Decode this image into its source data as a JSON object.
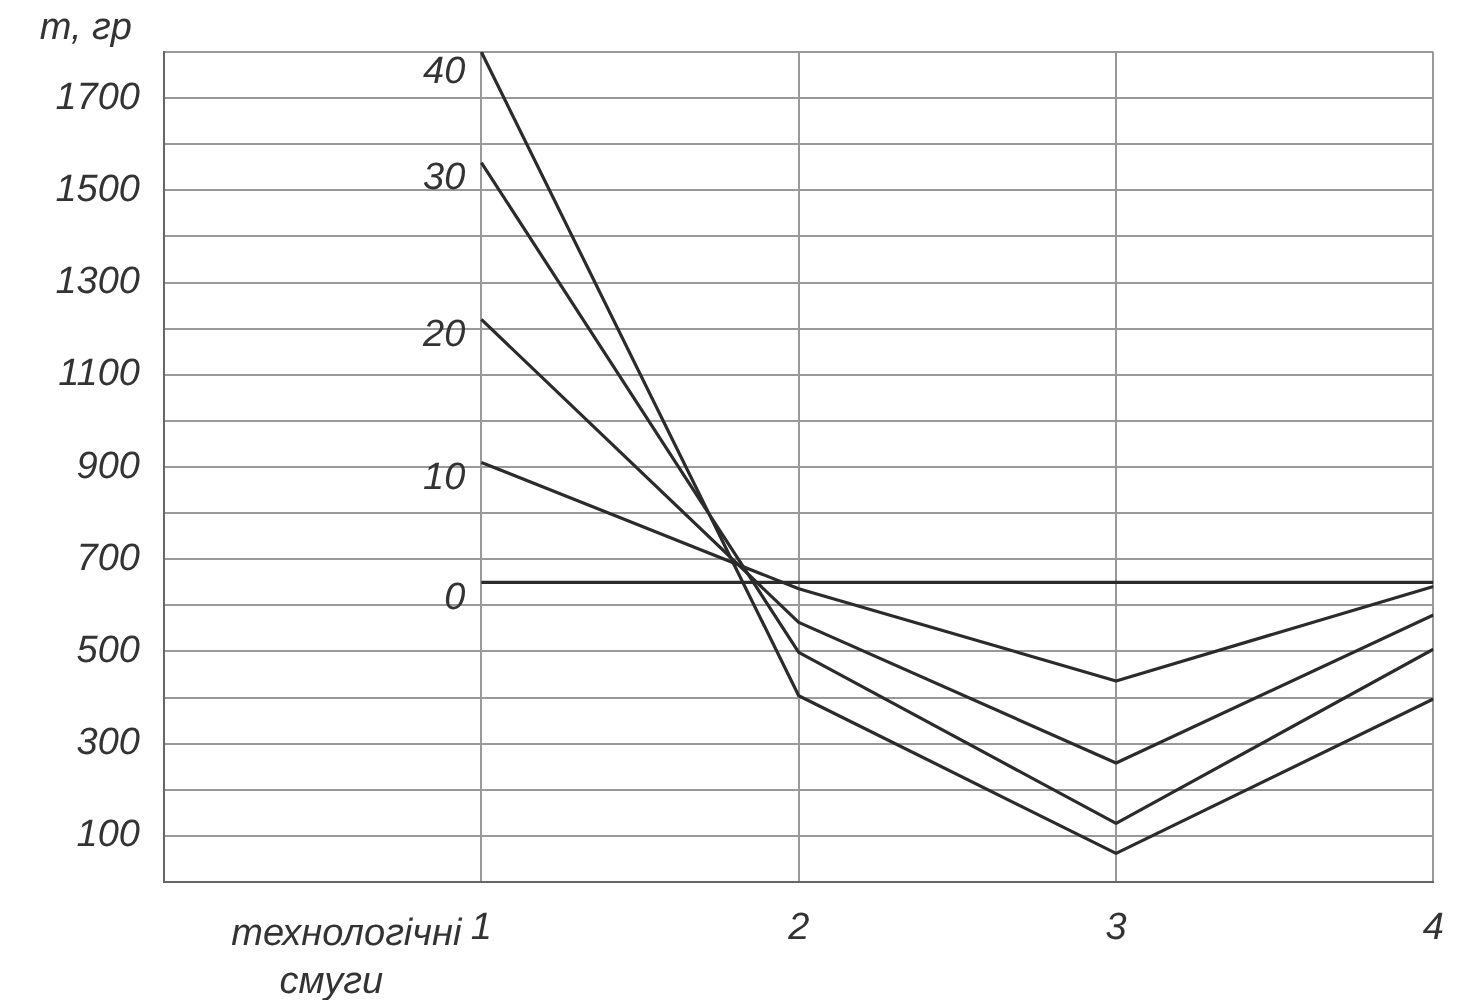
{
  "chart_data": {
    "type": "line",
    "ylabel": "т, гр",
    "xlabel": "технологічні смуги",
    "x": [
      1,
      2,
      3,
      4
    ],
    "xlim": [
      0,
      4
    ],
    "xticks": [
      {
        "value": 0,
        "label": null
      },
      1,
      2,
      3,
      4
    ],
    "ylim": [
      0,
      1800
    ],
    "yticks": [
      {
        "value": 0,
        "label": null
      },
      100,
      {
        "value": 200,
        "label": null
      },
      300,
      {
        "value": 400,
        "label": null
      },
      500,
      {
        "value": 600,
        "label": null
      },
      700,
      {
        "value": 800,
        "label": null
      },
      900,
      {
        "value": 1000,
        "label": null
      },
      1100,
      {
        "value": 1200,
        "label": null
      },
      1300,
      {
        "value": 1400,
        "label": null
      },
      1500,
      {
        "value": 1600,
        "label": null
      },
      1700,
      {
        "value": 1800,
        "label": null
      }
    ],
    "grid": true,
    "legend": false,
    "marker": "none",
    "line_style": "solid",
    "series": [
      {
        "name": "0",
        "color": "#2b2b2b",
        "values": [
          650,
          650,
          650,
          650
        ]
      },
      {
        "name": "10",
        "color": "#2b2b2b",
        "values": [
          910,
          636,
          436,
          641
        ]
      },
      {
        "name": "20",
        "color": "#2b2b2b",
        "values": [
          1220,
          563,
          258,
          579
        ]
      },
      {
        "name": "30",
        "color": "#2b2b2b",
        "values": [
          1560,
          498,
          127,
          505
        ]
      },
      {
        "name": "40",
        "color": "#2b2b2b",
        "values": [
          1800,
          404,
          62,
          397
        ]
      }
    ]
  }
}
